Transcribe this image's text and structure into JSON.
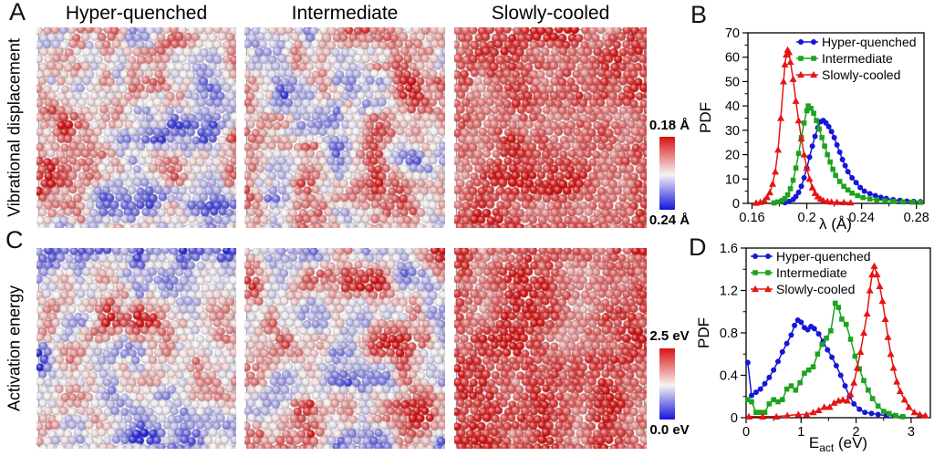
{
  "figure": {
    "panel_letters": {
      "A": "A",
      "B": "B",
      "C": "C",
      "D": "D"
    },
    "column_titles": [
      "Hyper-quenched",
      "Intermediate",
      "Slowly-cooled"
    ],
    "row_labels": {
      "A": "Vibrational displacement",
      "C": "Activation energy"
    }
  },
  "colormap": {
    "low": "#1f1fd6",
    "mid": "#f6f2f2",
    "high": "#d51515"
  },
  "colorbars": {
    "vibrational": {
      "top_label": "0.18 Å",
      "bottom_label": "0.24 Å",
      "top_color": "#d81111",
      "mid_color": "#f7f3f4",
      "bottom_color": "#1414dc"
    },
    "activation": {
      "top_label": "2.5 eV",
      "bottom_label": "0.0 eV",
      "top_color": "#d81111",
      "mid_color": "#f7f3f4",
      "bottom_color": "#1414dc"
    }
  },
  "snapshots": [
    {
      "panel": "A",
      "column": "Hyper-quenched",
      "appearance": "mixed red and blue particle clusters",
      "seed": 101,
      "bias": 0.5,
      "amp": 0.62,
      "patch_scale": 38
    },
    {
      "panel": "A",
      "column": "Intermediate",
      "appearance": "mostly red with scattered blue clusters",
      "seed": 202,
      "bias": 0.61,
      "amp": 0.55,
      "patch_scale": 36
    },
    {
      "panel": "A",
      "column": "Slowly-cooled",
      "appearance": "nearly all red with a few pale spots",
      "seed": 303,
      "bias": 0.87,
      "amp": 0.26,
      "patch_scale": 34
    },
    {
      "panel": "C",
      "column": "Hyper-quenched",
      "appearance": "blue-dominated with red patches",
      "seed": 404,
      "bias": 0.45,
      "amp": 0.6,
      "patch_scale": 40
    },
    {
      "panel": "C",
      "column": "Intermediate",
      "appearance": "red-dominated with blue clusters",
      "seed": 505,
      "bias": 0.59,
      "amp": 0.56,
      "patch_scale": 36
    },
    {
      "panel": "C",
      "column": "Slowly-cooled",
      "appearance": "nearly all red with a few pale spots",
      "seed": 606,
      "bias": 0.86,
      "amp": 0.26,
      "patch_scale": 34
    }
  ],
  "chart_data": [
    {
      "id": "B",
      "type": "line",
      "xlabel": "λ (Å)",
      "ylabel": "PDF",
      "xlim": [
        0.157,
        0.2855
      ],
      "ylim": [
        0,
        70
      ],
      "xticks": {
        "major": [
          0.16,
          0.2,
          0.24,
          0.28
        ],
        "labels": [
          "0.16",
          "0.2",
          "0.24",
          "0.28"
        ],
        "minor": [
          0.18,
          0.22,
          0.26
        ]
      },
      "yticks": {
        "major": [
          0,
          10,
          20,
          30,
          40,
          50,
          60,
          70
        ],
        "labels": [
          "0",
          "10",
          "20",
          "30",
          "40",
          "50",
          "60",
          "70"
        ],
        "minor": [
          5,
          15,
          25,
          35,
          45,
          55,
          65
        ]
      },
      "legend_position": "top-right",
      "grid": false,
      "series": [
        {
          "name": "Hyper-quenched",
          "color": "#1616d6",
          "marker": "circle",
          "points": [
            [
              0.184,
              0.3
            ],
            [
              0.187,
              0.8
            ],
            [
              0.19,
              1.6
            ],
            [
              0.192,
              2.8
            ],
            [
              0.194,
              4.5
            ],
            [
              0.196,
              7
            ],
            [
              0.198,
              10.5
            ],
            [
              0.2,
              14.5
            ],
            [
              0.202,
              19
            ],
            [
              0.204,
              23.5
            ],
            [
              0.206,
              27.5
            ],
            [
              0.208,
              31
            ],
            [
              0.21,
              33.5
            ],
            [
              0.212,
              34
            ],
            [
              0.214,
              33
            ],
            [
              0.216,
              31.5
            ],
            [
              0.218,
              29.5
            ],
            [
              0.22,
              27
            ],
            [
              0.222,
              24
            ],
            [
              0.224,
              21
            ],
            [
              0.226,
              18
            ],
            [
              0.228,
              15.5
            ],
            [
              0.23,
              13
            ],
            [
              0.233,
              10.5
            ],
            [
              0.236,
              8.5
            ],
            [
              0.239,
              6.5
            ],
            [
              0.242,
              5
            ],
            [
              0.246,
              4
            ],
            [
              0.25,
              3.2
            ],
            [
              0.254,
              2.5
            ],
            [
              0.258,
              2
            ],
            [
              0.263,
              1.5
            ],
            [
              0.268,
              1.2
            ],
            [
              0.273,
              0.9
            ],
            [
              0.278,
              0.8
            ],
            [
              0.283,
              0.7
            ]
          ]
        },
        {
          "name": "Intermediate",
          "color": "#1da31d",
          "marker": "square",
          "points": [
            [
              0.176,
              0.2
            ],
            [
              0.179,
              0.6
            ],
            [
              0.182,
              1.2
            ],
            [
              0.184,
              2
            ],
            [
              0.186,
              3.5
            ],
            [
              0.188,
              6
            ],
            [
              0.19,
              9.5
            ],
            [
              0.192,
              14.5
            ],
            [
              0.194,
              20.5
            ],
            [
              0.196,
              27
            ],
            [
              0.198,
              33
            ],
            [
              0.2,
              38
            ],
            [
              0.201,
              40
            ],
            [
              0.203,
              39
            ],
            [
              0.205,
              37
            ],
            [
              0.207,
              34
            ],
            [
              0.209,
              30.5
            ],
            [
              0.211,
              27
            ],
            [
              0.213,
              23.5
            ],
            [
              0.215,
              20
            ],
            [
              0.217,
              17
            ],
            [
              0.219,
              14
            ],
            [
              0.221,
              11.5
            ],
            [
              0.224,
              9
            ],
            [
              0.227,
              7
            ],
            [
              0.23,
              5.5
            ],
            [
              0.233,
              4.2
            ],
            [
              0.237,
              3.2
            ],
            [
              0.241,
              2.4
            ],
            [
              0.246,
              1.8
            ],
            [
              0.251,
              1.4
            ],
            [
              0.257,
              1.1
            ],
            [
              0.263,
              0.8
            ],
            [
              0.27,
              0.6
            ],
            [
              0.277,
              0.5
            ],
            [
              0.283,
              0.4
            ]
          ]
        },
        {
          "name": "Slowly-cooled",
          "color": "#e61414",
          "marker": "triangle",
          "points": [
            [
              0.163,
              0.2
            ],
            [
              0.166,
              0.5
            ],
            [
              0.169,
              1.2
            ],
            [
              0.171,
              2.5
            ],
            [
              0.173,
              4.5
            ],
            [
              0.175,
              8
            ],
            [
              0.177,
              13
            ],
            [
              0.179,
              22
            ],
            [
              0.181,
              35
            ],
            [
              0.183,
              50
            ],
            [
              0.184,
              57
            ],
            [
              0.185,
              61
            ],
            [
              0.186,
              63
            ],
            [
              0.187,
              62
            ],
            [
              0.188,
              58
            ],
            [
              0.19,
              51
            ],
            [
              0.192,
              42
            ],
            [
              0.194,
              34
            ],
            [
              0.196,
              26.5
            ],
            [
              0.198,
              20
            ],
            [
              0.2,
              14.5
            ],
            [
              0.202,
              10
            ],
            [
              0.204,
              6.5
            ],
            [
              0.206,
              4.2
            ],
            [
              0.208,
              2.8
            ],
            [
              0.21,
              1.8
            ],
            [
              0.212,
              1.2
            ],
            [
              0.215,
              0.8
            ],
            [
              0.218,
              0.6
            ],
            [
              0.222,
              0.5
            ],
            [
              0.227,
              0.4
            ],
            [
              0.232,
              0.3
            ]
          ]
        }
      ]
    },
    {
      "id": "D",
      "type": "line",
      "xlabel": "E_{act} (eV)",
      "ylabel": "PDF",
      "xlim": [
        0,
        3.35
      ],
      "ylim": [
        0,
        1.6
      ],
      "xticks": {
        "major": [
          0,
          1,
          2,
          3
        ],
        "labels": [
          "0",
          "1",
          "2",
          "3"
        ],
        "minor": [
          0.5,
          1.5,
          2.5
        ]
      },
      "yticks": {
        "major": [
          0,
          0.4,
          0.8,
          1.2,
          1.6
        ],
        "labels": [
          "0",
          "0.4",
          "0.8",
          "1.2",
          "1.6"
        ],
        "minor": [
          0.2,
          0.6,
          1.0,
          1.4
        ]
      },
      "legend_position": "top-left",
      "grid": false,
      "series": [
        {
          "name": "Hyper-quenched",
          "color": "#1616d6",
          "marker": "circle",
          "points": [
            [
              0.03,
              0.52
            ],
            [
              0.1,
              0.21
            ],
            [
              0.18,
              0.24
            ],
            [
              0.26,
              0.27
            ],
            [
              0.34,
              0.32
            ],
            [
              0.42,
              0.38
            ],
            [
              0.5,
              0.45
            ],
            [
              0.58,
              0.53
            ],
            [
              0.66,
              0.62
            ],
            [
              0.74,
              0.7
            ],
            [
              0.82,
              0.78
            ],
            [
              0.88,
              0.87
            ],
            [
              0.94,
              0.92
            ],
            [
              1.0,
              0.9
            ],
            [
              1.06,
              0.85
            ],
            [
              1.12,
              0.83
            ],
            [
              1.18,
              0.86
            ],
            [
              1.24,
              0.84
            ],
            [
              1.32,
              0.79
            ],
            [
              1.4,
              0.72
            ],
            [
              1.48,
              0.64
            ],
            [
              1.56,
              0.57
            ],
            [
              1.64,
              0.49
            ],
            [
              1.72,
              0.4
            ],
            [
              1.8,
              0.3
            ],
            [
              1.88,
              0.2
            ],
            [
              1.96,
              0.13
            ],
            [
              2.06,
              0.08
            ],
            [
              2.16,
              0.05
            ],
            [
              2.28,
              0.04
            ],
            [
              2.4,
              0.03
            ],
            [
              2.55,
              0.02
            ],
            [
              2.7,
              0.02
            ],
            [
              2.85,
              0.01
            ]
          ]
        },
        {
          "name": "Intermediate",
          "color": "#1da31d",
          "marker": "square",
          "points": [
            [
              0.03,
              0.17
            ],
            [
              0.1,
              0.15
            ],
            [
              0.18,
              0.05
            ],
            [
              0.26,
              0.05
            ],
            [
              0.34,
              0.05
            ],
            [
              0.42,
              0.13
            ],
            [
              0.5,
              0.17
            ],
            [
              0.58,
              0.15
            ],
            [
              0.66,
              0.17
            ],
            [
              0.74,
              0.27
            ],
            [
              0.82,
              0.3
            ],
            [
              0.9,
              0.26
            ],
            [
              0.98,
              0.33
            ],
            [
              1.06,
              0.42
            ],
            [
              1.14,
              0.45
            ],
            [
              1.22,
              0.48
            ],
            [
              1.3,
              0.6
            ],
            [
              1.38,
              0.69
            ],
            [
              1.46,
              0.75
            ],
            [
              1.54,
              0.82
            ],
            [
              1.62,
              1.08
            ],
            [
              1.68,
              1.04
            ],
            [
              1.74,
              0.93
            ],
            [
              1.82,
              0.88
            ],
            [
              1.9,
              0.74
            ],
            [
              1.98,
              0.58
            ],
            [
              2.06,
              0.46
            ],
            [
              2.14,
              0.35
            ],
            [
              2.22,
              0.26
            ],
            [
              2.3,
              0.18
            ],
            [
              2.4,
              0.11
            ],
            [
              2.5,
              0.06
            ],
            [
              2.6,
              0.04
            ],
            [
              2.72,
              0.02
            ],
            [
              2.85,
              0.01
            ]
          ]
        },
        {
          "name": "Slowly-cooled",
          "color": "#e61414",
          "marker": "triangle",
          "points": [
            [
              0.05,
              0.01
            ],
            [
              0.3,
              0.01
            ],
            [
              0.55,
              0.01
            ],
            [
              0.75,
              0.02
            ],
            [
              0.95,
              0.03
            ],
            [
              1.1,
              0.03
            ],
            [
              1.22,
              0.05
            ],
            [
              1.32,
              0.07
            ],
            [
              1.42,
              0.1
            ],
            [
              1.52,
              0.1
            ],
            [
              1.6,
              0.14
            ],
            [
              1.68,
              0.16
            ],
            [
              1.76,
              0.17
            ],
            [
              1.84,
              0.16
            ],
            [
              1.9,
              0.22
            ],
            [
              1.96,
              0.33
            ],
            [
              2.02,
              0.47
            ],
            [
              2.08,
              0.62
            ],
            [
              2.14,
              0.8
            ],
            [
              2.2,
              0.98
            ],
            [
              2.25,
              1.2
            ],
            [
              2.29,
              1.35
            ],
            [
              2.33,
              1.43
            ],
            [
              2.38,
              1.35
            ],
            [
              2.43,
              1.24
            ],
            [
              2.48,
              1.1
            ],
            [
              2.53,
              0.93
            ],
            [
              2.58,
              0.76
            ],
            [
              2.63,
              0.6
            ],
            [
              2.68,
              0.47
            ],
            [
              2.74,
              0.34
            ],
            [
              2.8,
              0.25
            ],
            [
              2.88,
              0.17
            ],
            [
              2.96,
              0.1
            ],
            [
              3.06,
              0.05
            ],
            [
              3.16,
              0.03
            ],
            [
              3.26,
              0.02
            ]
          ]
        }
      ]
    }
  ]
}
